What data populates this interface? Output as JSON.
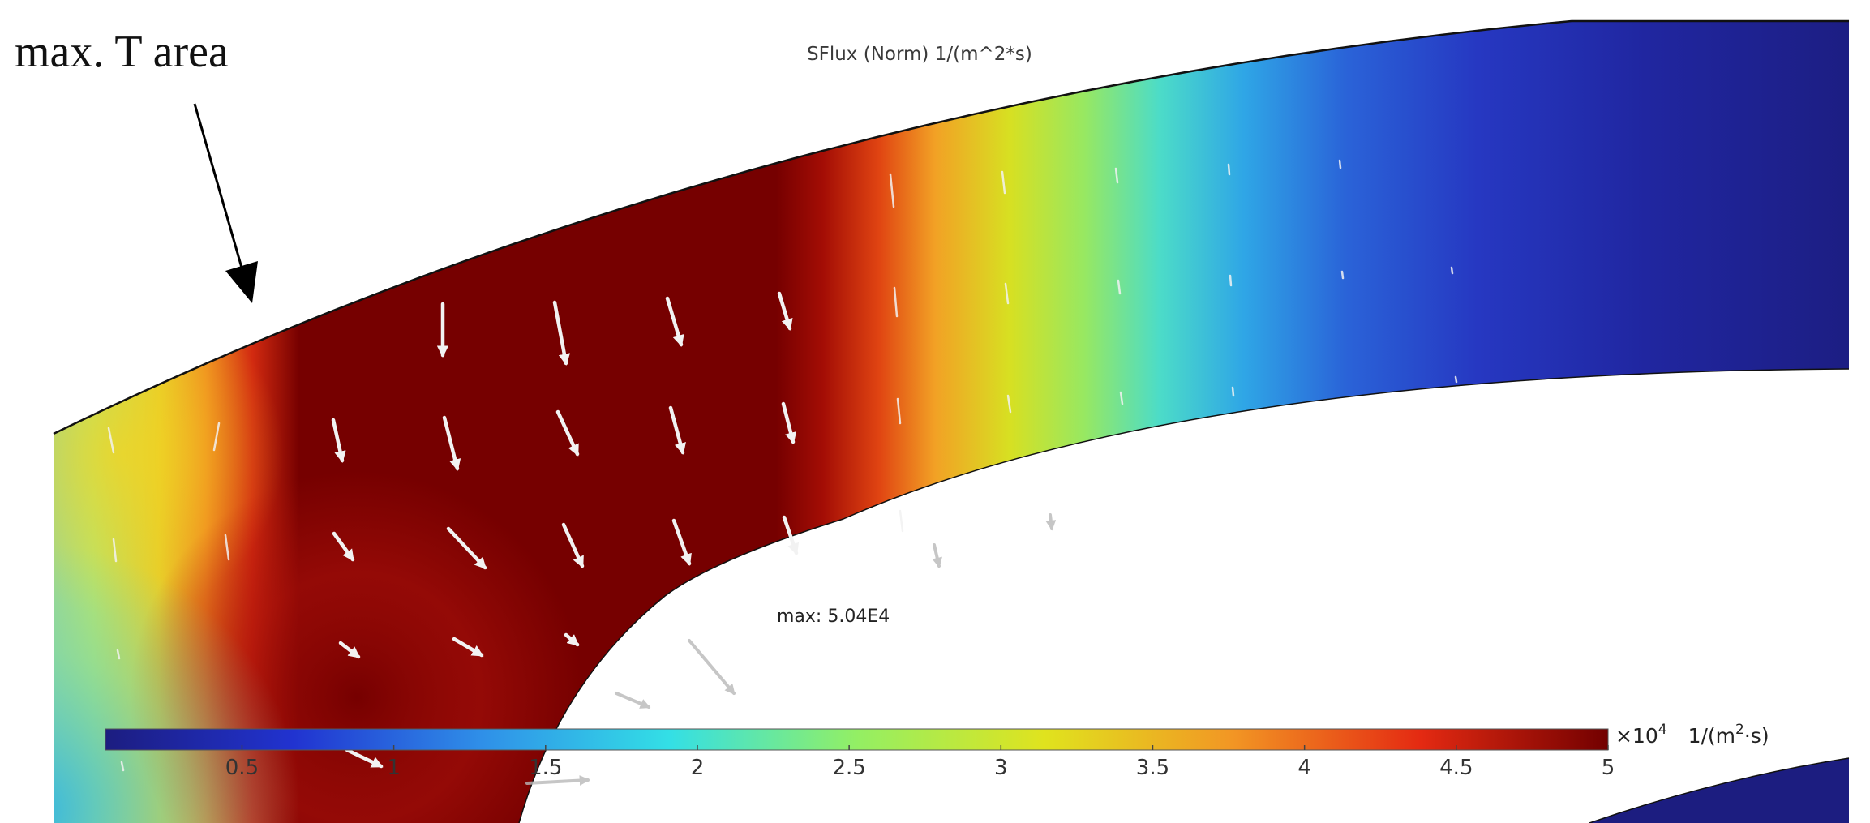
{
  "annotation": {
    "text": "max. T area"
  },
  "plot": {
    "title": "SFlux (Norm) 1/(m^2*s)",
    "max_label": "max: 5.04E4"
  },
  "colorbar": {
    "ticks": [
      "0.5",
      "1",
      "1.5",
      "2",
      "2.5",
      "3",
      "3.5",
      "4",
      "4.5",
      "5"
    ],
    "tick_values": [
      0.5,
      1,
      1.5,
      2,
      2.5,
      3,
      3.5,
      4,
      4.5,
      5
    ],
    "range": [
      0.05,
      5.0
    ],
    "multiplier_base": "×10",
    "multiplier_exp": "4",
    "unit_prefix": "1/(m",
    "unit_exp": "2",
    "unit_suffix": "·s)"
  },
  "colors": {
    "jet": [
      "#1c1d80",
      "#2133d0",
      "#2f8fe8",
      "#33dfe6",
      "#93ef64",
      "#e0e31e",
      "#f29624",
      "#e42a12",
      "#720000"
    ],
    "arrow": "#f2f2f2",
    "annotation_arrow": "#000000",
    "outline": "#111111"
  }
}
